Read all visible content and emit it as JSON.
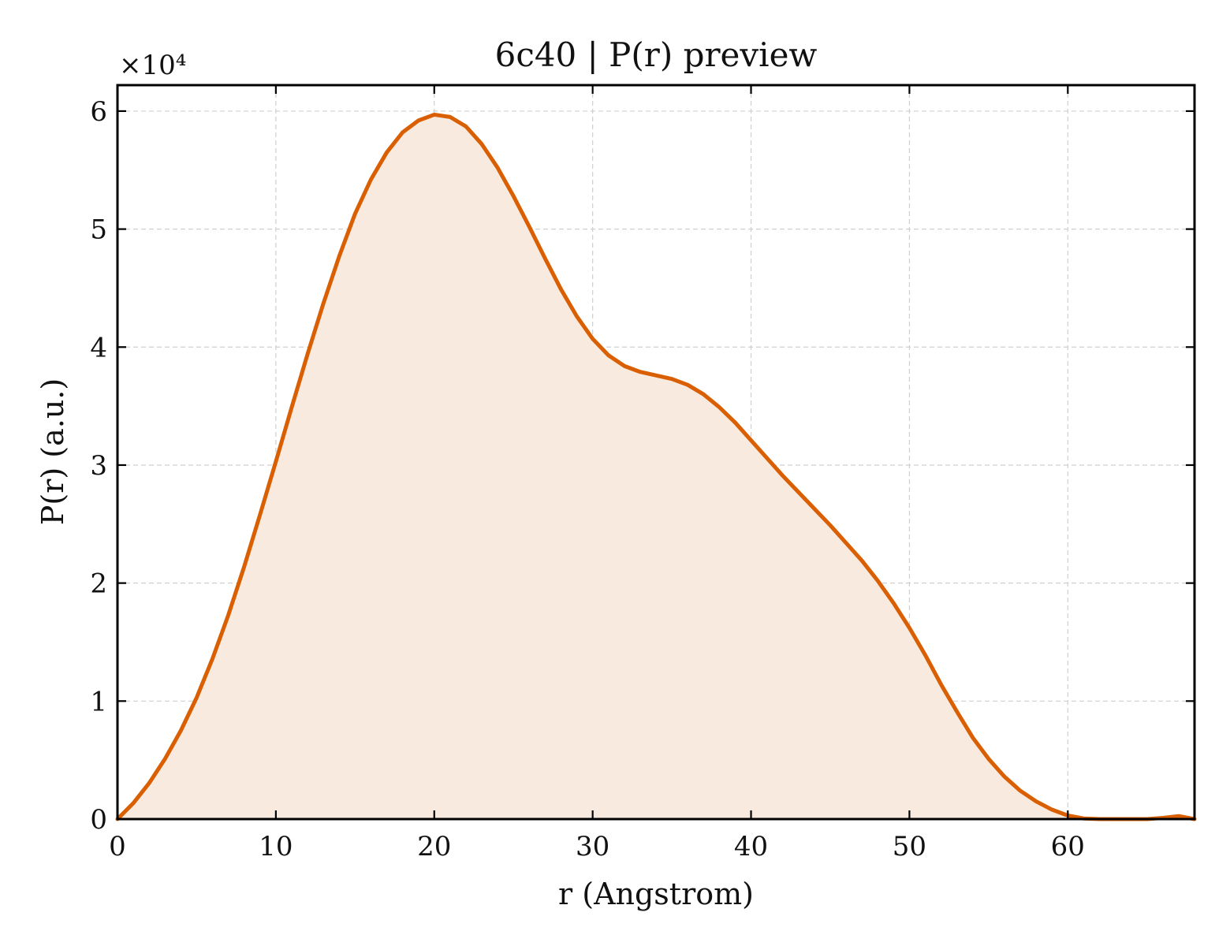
{
  "chart_data": {
    "type": "area",
    "title": "6c40 | P(r) preview",
    "xlabel": "r (Angstrom)",
    "ylabel": "P(r) (a.u.)",
    "y_multiplier_label": "×10⁴",
    "y_scale_factor": 10000,
    "xlim": [
      0,
      68
    ],
    "ylim": [
      0,
      62200
    ],
    "x_ticks": [
      0,
      10,
      20,
      30,
      40,
      50,
      60
    ],
    "y_ticks": [
      0,
      1,
      2,
      3,
      4,
      5,
      6
    ],
    "x_tick_labels": [
      "0",
      "10",
      "20",
      "30",
      "40",
      "50",
      "60"
    ],
    "y_tick_labels": [
      "0",
      "1",
      "2",
      "3",
      "4",
      "5",
      "6"
    ],
    "grid": true,
    "colors": {
      "line": "#d95f02",
      "fill": "#f9eadf"
    },
    "series": [
      {
        "x": [
          0,
          1,
          2,
          3,
          4,
          5,
          6,
          7,
          8,
          9,
          10,
          11,
          12,
          13,
          14,
          15,
          16,
          17,
          18,
          19,
          20,
          21,
          22,
          23,
          24,
          25,
          26,
          27,
          28,
          29,
          30,
          31,
          32,
          33,
          34,
          35,
          36,
          37,
          38,
          39,
          40,
          41,
          42,
          43,
          44,
          45,
          46,
          47,
          48,
          49,
          50,
          51,
          52,
          53,
          54,
          55,
          56,
          57,
          58,
          59,
          60,
          61,
          62,
          63,
          64,
          65,
          66,
          67,
          68
        ],
        "values": [
          0,
          1350,
          3050,
          5100,
          7500,
          10300,
          13600,
          17300,
          21400,
          25800,
          30300,
          34900,
          39400,
          43700,
          47700,
          51300,
          54200,
          56500,
          58200,
          59200,
          59700,
          59500,
          58700,
          57200,
          55200,
          52800,
          50200,
          47500,
          44900,
          42600,
          40700,
          39300,
          38400,
          37900,
          37600,
          37300,
          36800,
          36000,
          34900,
          33600,
          32100,
          30600,
          29100,
          27700,
          26300,
          24900,
          23400,
          21900,
          20200,
          18300,
          16200,
          13900,
          11400,
          9100,
          6900,
          5100,
          3600,
          2400,
          1500,
          800,
          300,
          50,
          0,
          0,
          0,
          0,
          100,
          250,
          0
        ]
      }
    ]
  }
}
